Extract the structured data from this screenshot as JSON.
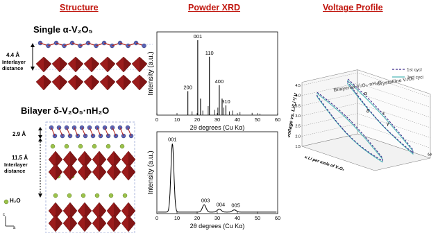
{
  "headers": {
    "structure": "Structure",
    "xrd": "Powder XRD",
    "voltage": "Voltage Profile"
  },
  "structure": {
    "single_title": "Single α-V₂O₅",
    "single_spacing": "4.4 Å",
    "single_spacing_label": "Interlayer distance",
    "bilayer_title": "Bilayer δ-V₂O₅·nH₂O",
    "bilayer_small_spacing": "2.9 Å",
    "bilayer_spacing": "11.5 Å",
    "bilayer_spacing_label": "Interlayer distance",
    "water_legend": "H₂O",
    "axis_c": "c",
    "axis_a": "a",
    "colors": {
      "octahedra": "#9b1c1c",
      "vanadium": "#5a63b5",
      "water": "#9bc24a"
    }
  },
  "chart_data": [
    {
      "type": "bar",
      "panel": "crystalline-xrd",
      "xlabel": "2θ degrees (Cu Kα)",
      "ylabel": "Intensity (a.u.)",
      "xlim": [
        0,
        60
      ],
      "xticks": [
        0,
        10,
        20,
        30,
        40,
        50,
        60
      ],
      "ylim": [
        0,
        1
      ],
      "x": [
        15.4,
        20.3,
        21.7,
        26.1,
        31.0,
        32.4,
        34.3
      ],
      "values": [
        0.32,
        1.0,
        0.22,
        0.78,
        0.4,
        0.22,
        0.13
      ],
      "peak_labels": [
        {
          "label": "200",
          "x": 15.4
        },
        {
          "label": "001",
          "x": 20.3
        },
        {
          "label": "110",
          "x": 26.1
        },
        {
          "label": "400",
          "x": 31.0
        },
        {
          "label": "310",
          "x": 34.3
        }
      ],
      "minor_peaks": {
        "x": [
          17.5,
          22.8,
          25.5,
          28.7,
          30.3,
          33.2,
          36.0,
          37.6,
          41.3,
          47.3,
          51.2
        ],
        "values": [
          0.05,
          0.06,
          0.12,
          0.07,
          0.1,
          0.1,
          0.05,
          0.06,
          0.04,
          0.03,
          0.02
        ]
      }
    },
    {
      "type": "line",
      "panel": "bilayer-xrd",
      "xlabel": "2θ degrees (Cu Kα)",
      "ylabel": "Intensity (a.u.)",
      "xlim": [
        0,
        60
      ],
      "xticks": [
        0,
        10,
        20,
        30,
        40,
        50,
        60
      ],
      "ylim": [
        0,
        1
      ],
      "peaks": [
        {
          "label": "001",
          "center": 7.7,
          "height": 0.93,
          "width": 0.75
        },
        {
          "label": "003",
          "center": 23.5,
          "height": 0.1,
          "width": 0.9
        },
        {
          "label": "004",
          "center": 31.0,
          "height": 0.04,
          "width": 1.0
        },
        {
          "label": "005",
          "center": 38.5,
          "height": 0.03,
          "width": 1.0
        }
      ],
      "baseline": 0.02
    },
    {
      "type": "line",
      "panel": "voltage-profile-3d",
      "ylabel": "Voltage vs. Li/Li⁺/ V",
      "xlabel": "x Li per mole of V₂O₅",
      "yticks": [
        "1.5",
        "2.0",
        "2.5",
        "3.0",
        "3.5",
        "4.0",
        "4.5"
      ],
      "ylim": [
        1.5,
        4.5
      ],
      "legend": [
        "1st cycl",
        "2nd cycl"
      ],
      "legend_position": "top-right",
      "curve_labels": {
        "bilayer": "Bilayered V₂O₅·nH₂O",
        "crystalline": "Crystalline V₂O₅",
        "phases": [
          "α",
          "ε",
          "δ",
          "γ",
          "ω"
        ]
      },
      "colors": {
        "cycle1": "#3d2a8a",
        "cycle2": "#4fb8b8"
      }
    }
  ]
}
